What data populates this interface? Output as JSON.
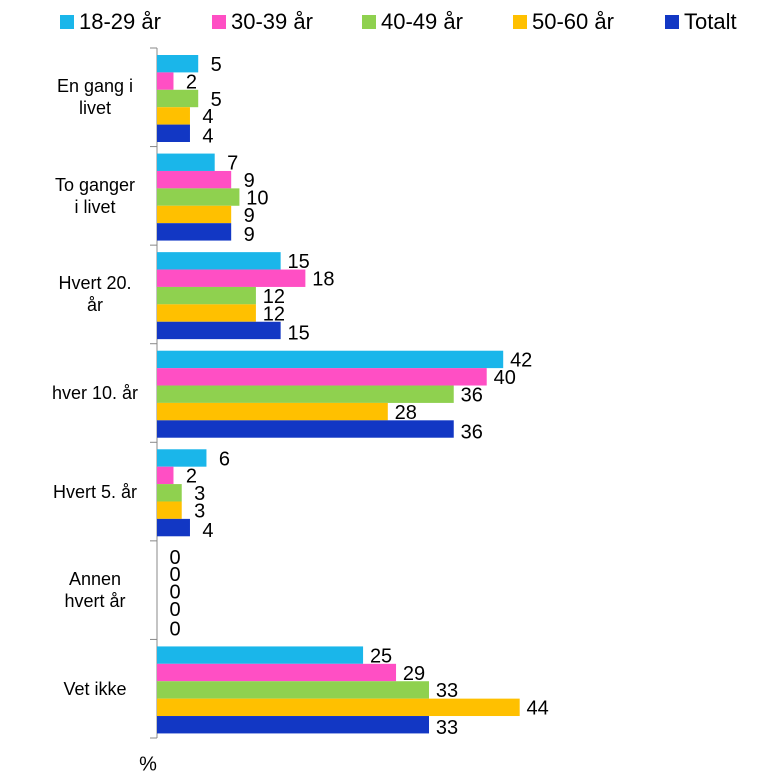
{
  "chart_data": {
    "type": "barh",
    "categories": [
      "En gang i\nlivet",
      "To ganger\ni livet",
      "Hvert 20.\når",
      "hver 10. år",
      "Hvert 5. år",
      "Annen\nhvert år",
      "Vet ikke"
    ],
    "series": [
      {
        "name": "18-29 år",
        "color": "#1ab6ea",
        "values": [
          5,
          7,
          15,
          42,
          6,
          0,
          25
        ]
      },
      {
        "name": "30-39 år",
        "color": "#ff4fc4",
        "values": [
          2,
          9,
          18,
          40,
          2,
          0,
          29
        ]
      },
      {
        "name": "40-49 år",
        "color": "#8fd14f",
        "values": [
          5,
          10,
          12,
          36,
          3,
          0,
          33
        ]
      },
      {
        "name": "50-60 år",
        "color": "#ffc000",
        "values": [
          4,
          9,
          12,
          28,
          3,
          0,
          44
        ]
      },
      {
        "name": "Totalt",
        "color": "#1237c4",
        "values": [
          4,
          9,
          15,
          36,
          4,
          0,
          33
        ]
      }
    ],
    "xlabel": "%",
    "xlim": [
      0,
      70
    ],
    "legend": "top"
  }
}
